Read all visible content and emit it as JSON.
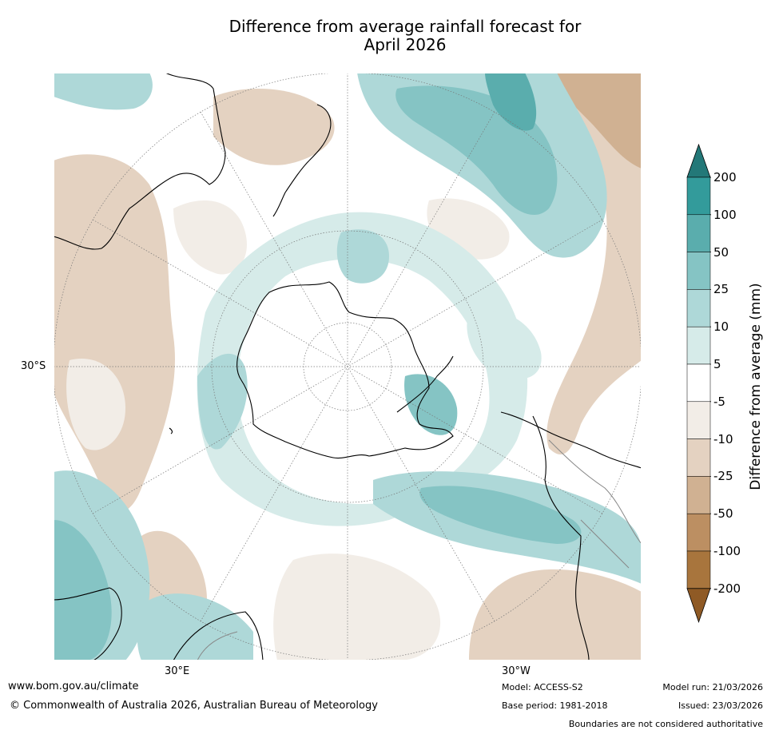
{
  "title": {
    "line1": "Difference from average rainfall forecast for",
    "line2": "April 2026"
  },
  "map": {
    "projection": "south-polar stereographic",
    "lat_label": "30°S",
    "lon_labels": {
      "east": "30°E",
      "west": "30°W"
    }
  },
  "colorbar": {
    "label": "Difference from average (mm)",
    "ticks": [
      "200",
      "100",
      "50",
      "25",
      "10",
      "5",
      "-5",
      "-10",
      "-25",
      "-50",
      "-100",
      "-200"
    ],
    "colors": [
      "#237878",
      "#339b9b",
      "#5aadad",
      "#85c4c4",
      "#aed8d8",
      "#d6ebe9",
      "#ffffff",
      "#f2ede7",
      "#e4d2c1",
      "#d0b192",
      "#bc8f62",
      "#a8753d",
      "#8f5a25"
    ]
  },
  "footer": {
    "url": "www.bom.gov.au/climate",
    "copyright": "© Commonwealth of Australia 2026, Australian Bureau of Meteorology",
    "model": "Model: ACCESS-S2",
    "base_period": "Base period: 1981-2018",
    "model_run": "Model run: 21/03/2026",
    "issued": "Issued: 23/03/2026",
    "disclaimer": "Boundaries are not considered authoritative"
  }
}
